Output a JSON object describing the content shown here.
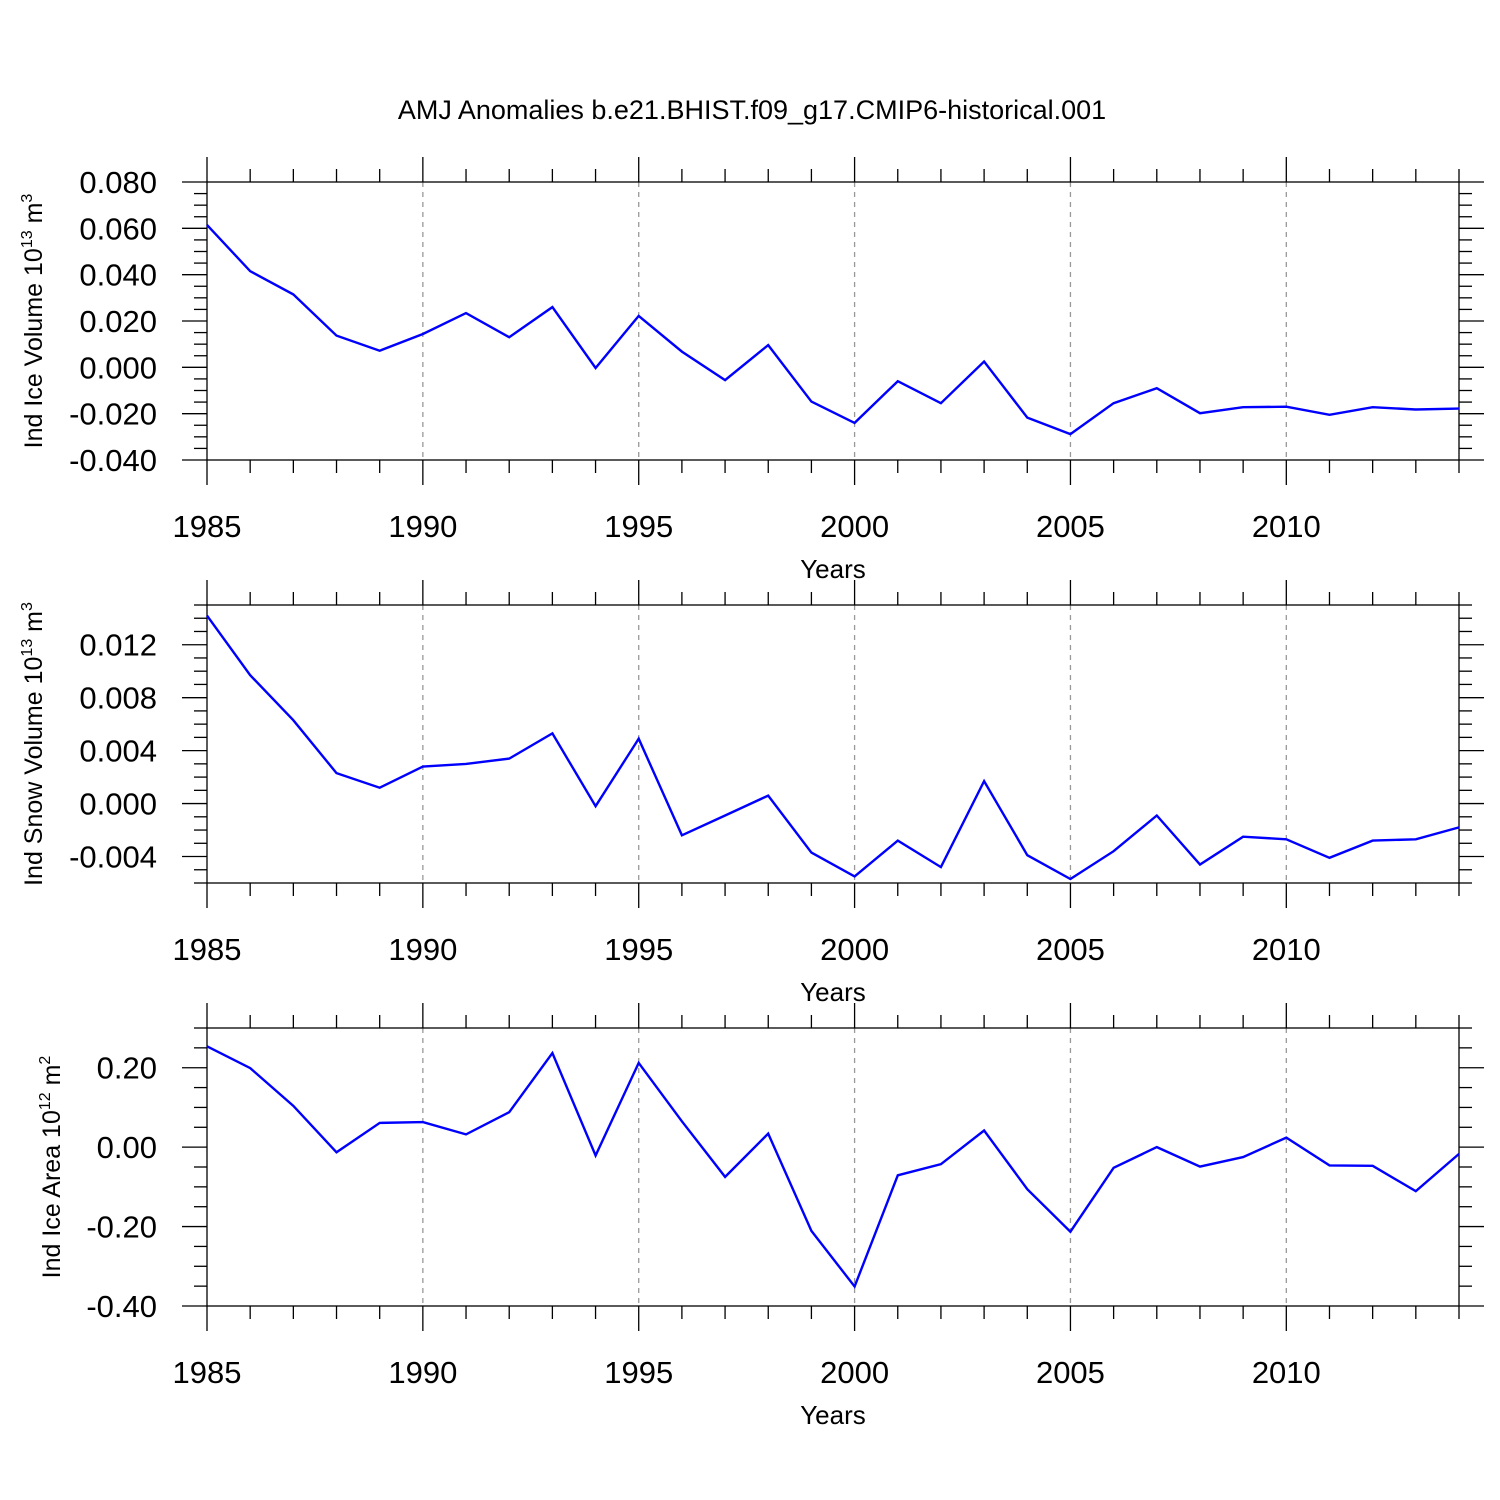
{
  "title": "AMJ Anomalies b.e21.BHIST.f09_g17.CMIP6-historical.001",
  "colors": {
    "series": "#0000ff",
    "axis": "#000000",
    "grid": "#999999"
  },
  "chart_data": [
    {
      "type": "line",
      "ylabel": {
        "base": "Ind Ice Volume 10",
        "exponent": "13",
        "unit": " m",
        "unit_exponent": "3"
      },
      "xlabel": "Years",
      "xlim": [
        1985,
        2014
      ],
      "ylim": [
        -0.04,
        0.08
      ],
      "yticks": [
        "0.080",
        "0.060",
        "0.040",
        "0.020",
        "0.000",
        "-0.020",
        "-0.040"
      ],
      "ytick_values": [
        0.08,
        0.06,
        0.04,
        0.02,
        0.0,
        -0.02,
        -0.04
      ],
      "xticks": [
        "1985",
        "1990",
        "1995",
        "2000",
        "2005",
        "2010"
      ],
      "xtick_values": [
        1985,
        1990,
        1995,
        2000,
        2005,
        2010
      ],
      "grid": "vertical dashed at major x ticks",
      "x": [
        1985,
        1986,
        1987,
        1988,
        1989,
        1990,
        1991,
        1992,
        1993,
        1994,
        1995,
        1996,
        1997,
        1998,
        1999,
        2000,
        2001,
        2002,
        2003,
        2004,
        2005,
        2006,
        2007,
        2008,
        2009,
        2010,
        2011,
        2012,
        2013,
        2014
      ],
      "values": [
        0.0615,
        0.0415,
        0.0315,
        0.0137,
        0.0072,
        0.0144,
        0.0234,
        0.013,
        0.026,
        -0.0003,
        0.0222,
        0.0068,
        -0.0055,
        0.0096,
        -0.0148,
        -0.024,
        -0.006,
        -0.0155,
        0.0025,
        -0.0217,
        -0.0288,
        -0.0155,
        -0.009,
        -0.0198,
        -0.0172,
        -0.017,
        -0.0205,
        -0.0172,
        -0.0182,
        -0.0178
      ]
    },
    {
      "type": "line",
      "ylabel": {
        "base": "Ind Snow Volume 10",
        "exponent": "13",
        "unit": " m",
        "unit_exponent": "3"
      },
      "xlabel": "Years",
      "xlim": [
        1985,
        2014
      ],
      "ylim": [
        -0.006,
        0.015
      ],
      "yticks": [
        "0.012",
        "0.008",
        "0.004",
        "0.000",
        "-0.004"
      ],
      "ytick_values": [
        0.012,
        0.008,
        0.004,
        0.0,
        -0.004
      ],
      "xticks": [
        "1985",
        "1990",
        "1995",
        "2000",
        "2005",
        "2010"
      ],
      "xtick_values": [
        1985,
        1990,
        1995,
        2000,
        2005,
        2010
      ],
      "grid": "vertical dashed at major x ticks",
      "x": [
        1985,
        1986,
        1987,
        1988,
        1989,
        1990,
        1991,
        1992,
        1993,
        1994,
        1995,
        1996,
        1997,
        1998,
        1999,
        2000,
        2001,
        2002,
        2003,
        2004,
        2005,
        2006,
        2007,
        2008,
        2009,
        2010,
        2011,
        2012,
        2013,
        2014
      ],
      "values": [
        0.0142,
        0.0097,
        0.0063,
        0.0023,
        0.0012,
        0.0028,
        0.003,
        0.0034,
        0.0053,
        -0.0002,
        0.0049,
        -0.0024,
        -0.0009,
        0.0006,
        -0.0037,
        -0.0055,
        -0.0028,
        -0.0048,
        0.0017,
        -0.0039,
        -0.0057,
        -0.0036,
        -0.0009,
        -0.0046,
        -0.0025,
        -0.0027,
        -0.0041,
        -0.0028,
        -0.0027,
        -0.0018
      ]
    },
    {
      "type": "line",
      "ylabel": {
        "base": "Ind Ice Area 10",
        "exponent": "12",
        "unit": " m",
        "unit_exponent": "2"
      },
      "xlabel": "Years",
      "xlim": [
        1985,
        2014
      ],
      "ylim": [
        -0.4,
        0.3
      ],
      "yticks": [
        "0.20",
        "0.00",
        "-0.20",
        "-0.40"
      ],
      "ytick_values": [
        0.2,
        0.0,
        -0.2,
        -0.4
      ],
      "xticks": [
        "1985",
        "1990",
        "1995",
        "2000",
        "2005",
        "2010"
      ],
      "xtick_values": [
        1985,
        1990,
        1995,
        2000,
        2005,
        2010
      ],
      "grid": "vertical dashed at major x ticks",
      "x": [
        1985,
        1986,
        1987,
        1988,
        1989,
        1990,
        1991,
        1992,
        1993,
        1994,
        1995,
        1996,
        1997,
        1998,
        1999,
        2000,
        2001,
        2002,
        2003,
        2004,
        2005,
        2006,
        2007,
        2008,
        2009,
        2010,
        2011,
        2012,
        2013,
        2014
      ],
      "values": [
        0.254,
        0.199,
        0.104,
        -0.013,
        0.061,
        0.063,
        0.032,
        0.088,
        0.237,
        -0.021,
        0.212,
        0.065,
        -0.075,
        0.034,
        -0.211,
        -0.351,
        -0.071,
        -0.043,
        0.042,
        -0.106,
        -0.213,
        -0.052,
        0.0,
        -0.049,
        -0.025,
        0.024,
        -0.046,
        -0.047,
        -0.111,
        -0.017
      ]
    }
  ]
}
